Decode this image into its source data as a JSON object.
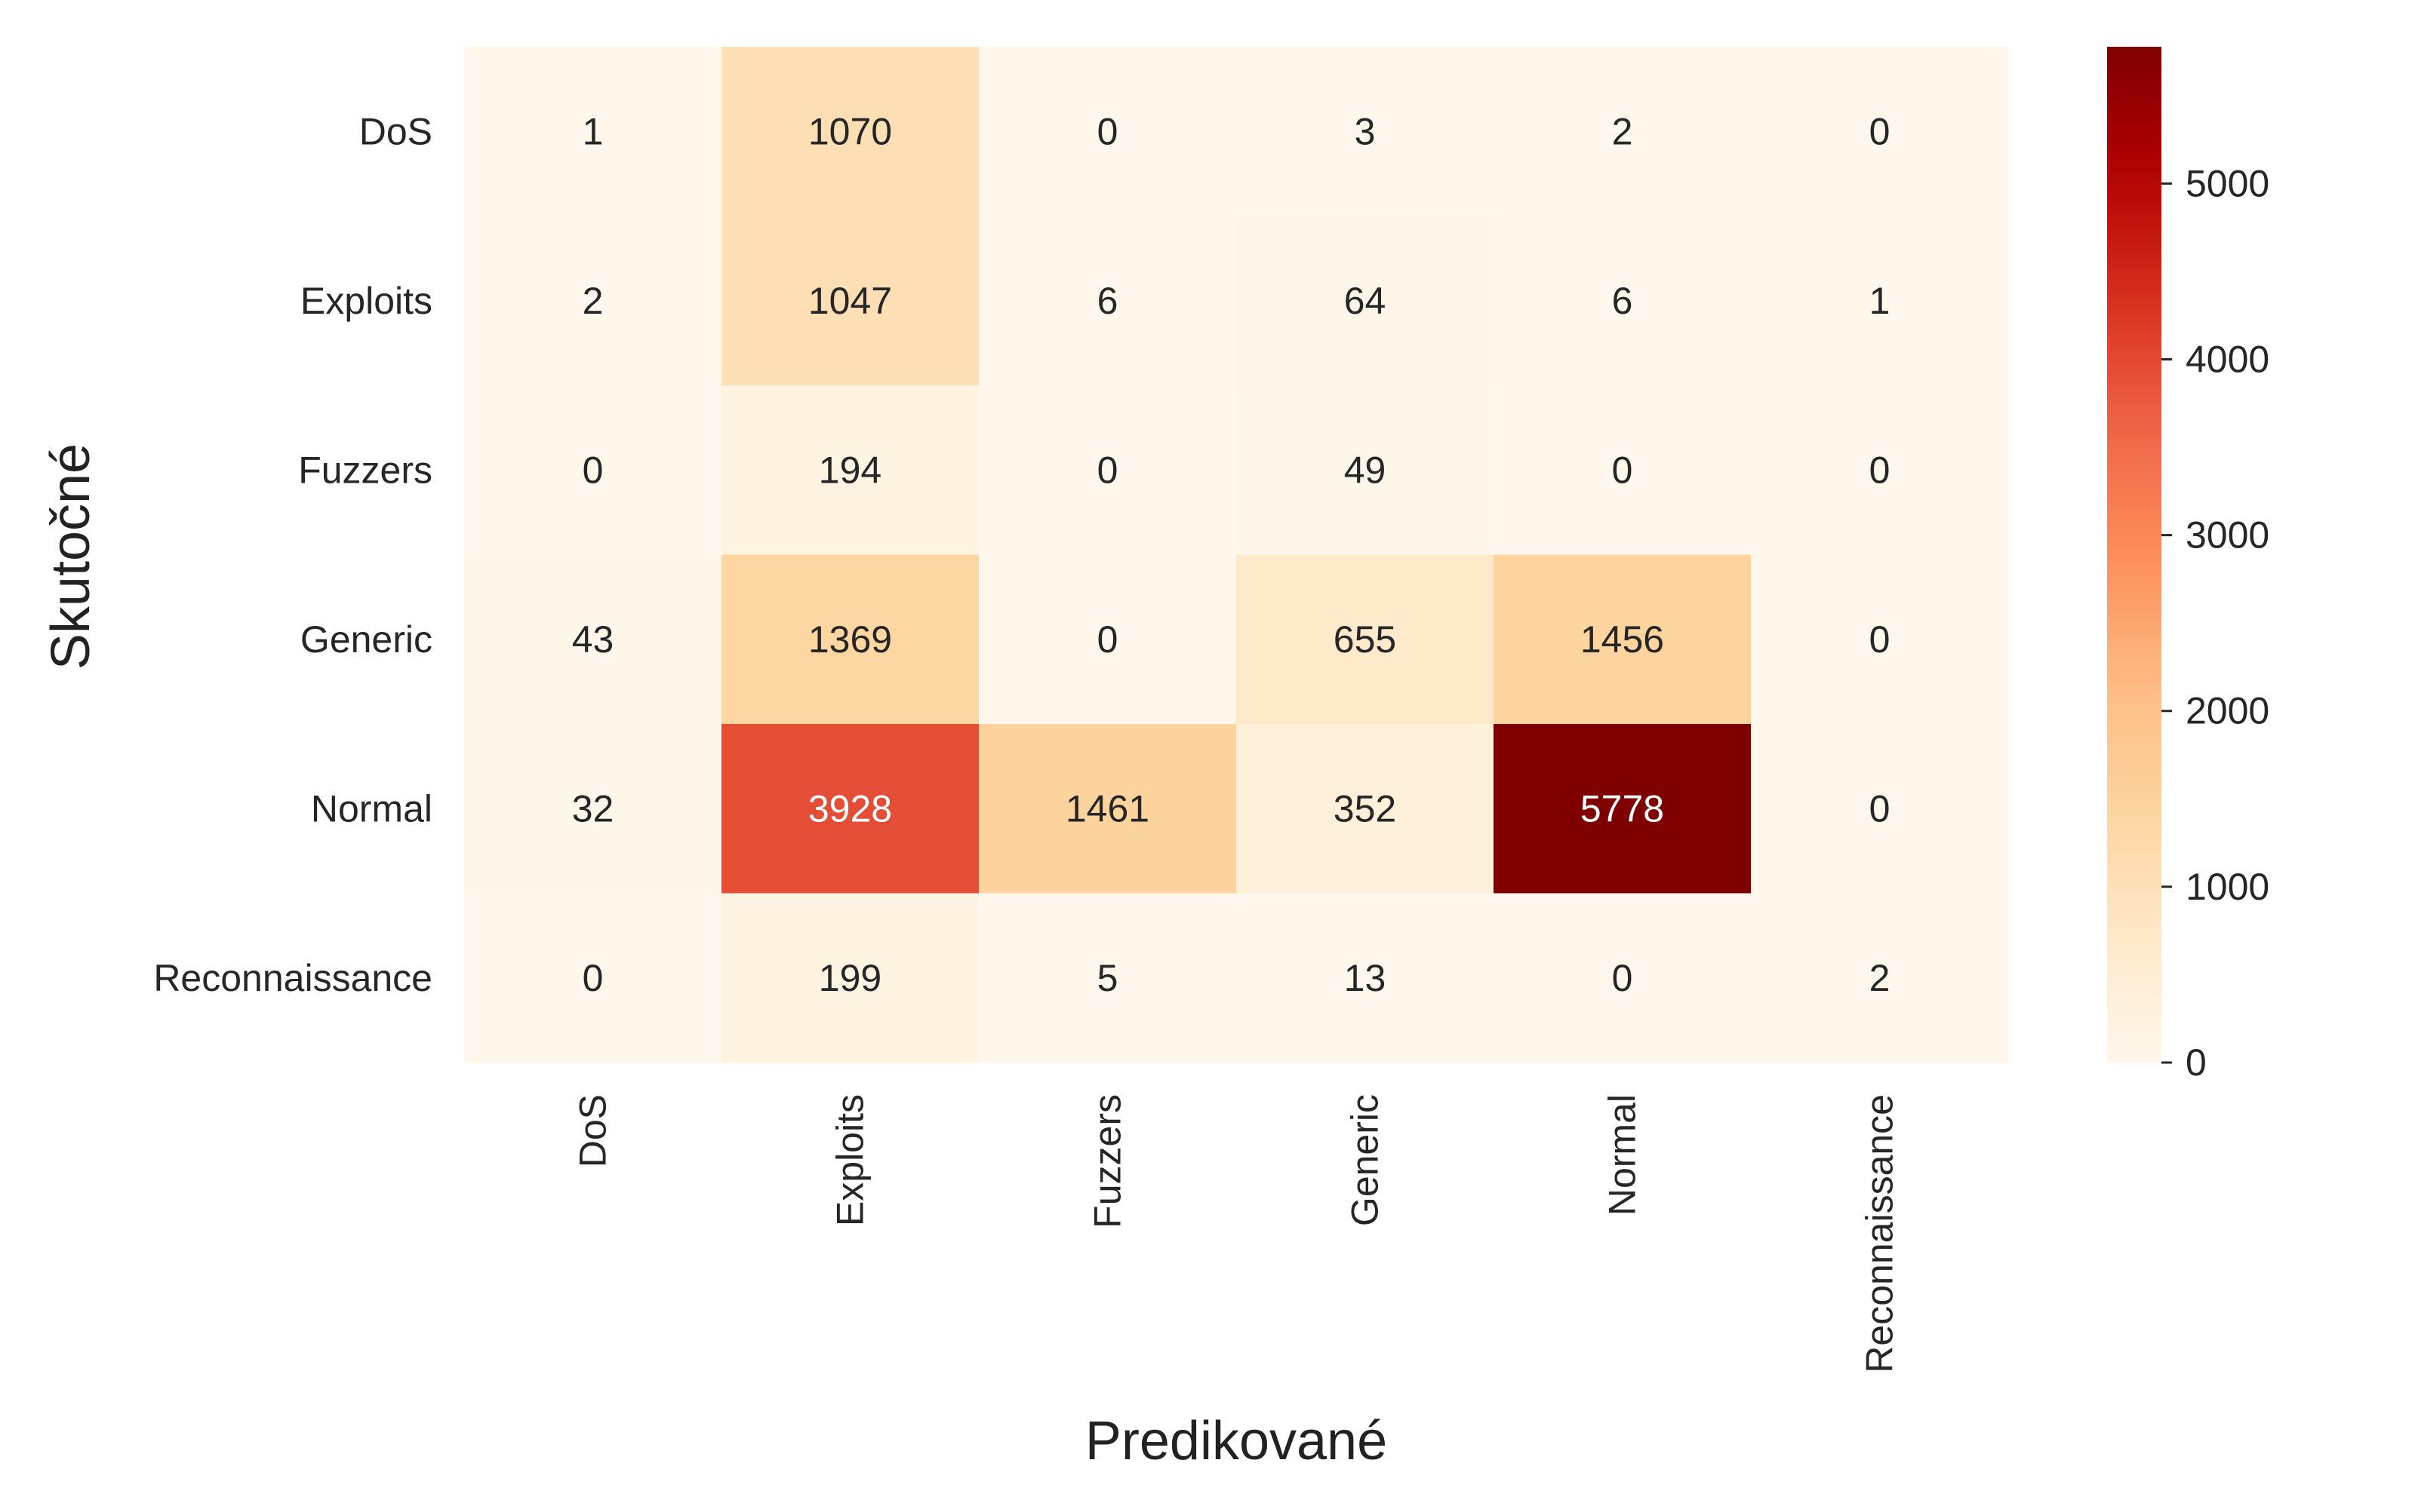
{
  "chart_data": {
    "type": "heatmap",
    "title": "",
    "xlabel": "Predikované",
    "ylabel": "Skutočné",
    "x_categories": [
      "DoS",
      "Exploits",
      "Fuzzers",
      "Generic",
      "Normal",
      "Reconnaissance"
    ],
    "y_categories": [
      "DoS",
      "Exploits",
      "Fuzzers",
      "Generic",
      "Normal",
      "Reconnaissance"
    ],
    "values": [
      [
        1,
        1070,
        0,
        3,
        2,
        0
      ],
      [
        2,
        1047,
        6,
        64,
        6,
        1
      ],
      [
        0,
        194,
        0,
        49,
        0,
        0
      ],
      [
        43,
        1369,
        0,
        655,
        1456,
        0
      ],
      [
        32,
        3928,
        1461,
        352,
        5778,
        0
      ],
      [
        0,
        199,
        5,
        13,
        0,
        2
      ]
    ],
    "colorbar": {
      "colormap": "OrRd",
      "vmin": 0,
      "vmax": 5778,
      "ticks": [
        0,
        1000,
        2000,
        3000,
        4000,
        5000
      ]
    },
    "grid": false
  }
}
